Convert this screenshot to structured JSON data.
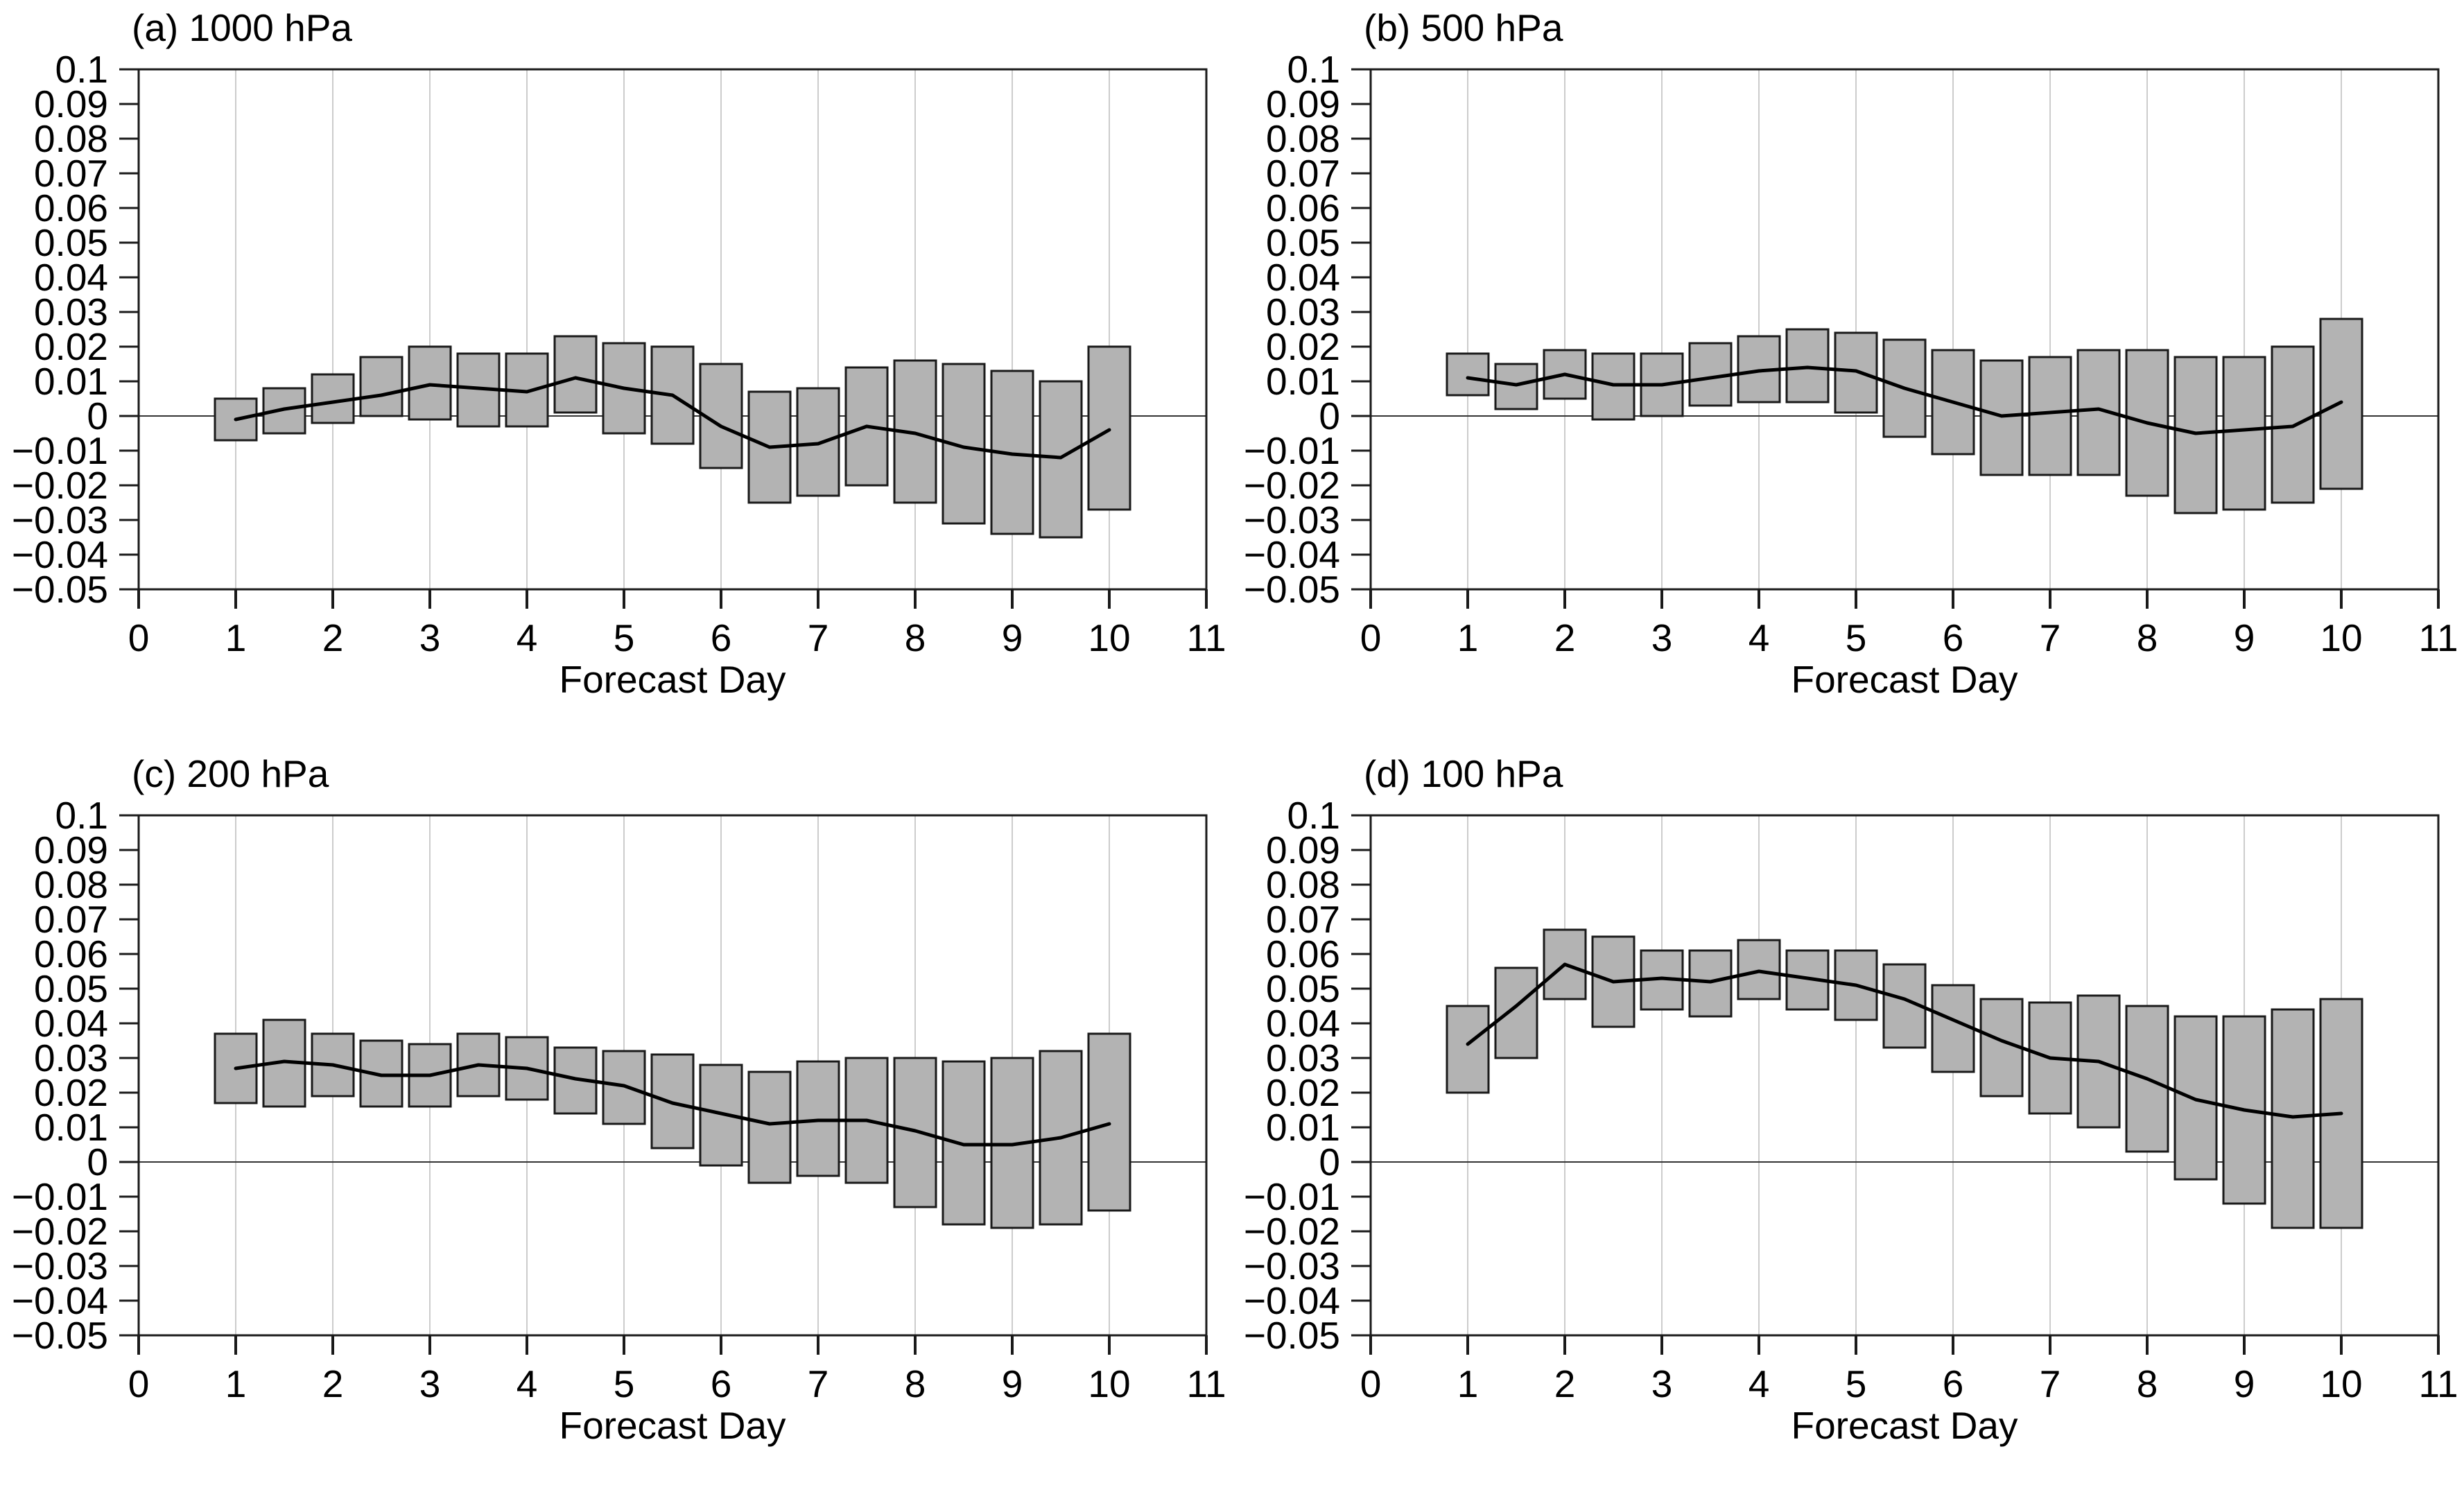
{
  "figure": {
    "background": "#ffffff",
    "xlabel": "Forecast Day",
    "x_tick_labels": [
      "0",
      "1",
      "2",
      "3",
      "4",
      "5",
      "6",
      "7",
      "8",
      "9",
      "10",
      "11"
    ],
    "y_ticks": [
      {
        "v": 0.1,
        "label": "0.1"
      },
      {
        "v": 0.09,
        "label": "0.09"
      },
      {
        "v": 0.08,
        "label": "0.08"
      },
      {
        "v": 0.07,
        "label": "0.07"
      },
      {
        "v": 0.06,
        "label": "0.06"
      },
      {
        "v": 0.05,
        "label": "0.05"
      },
      {
        "v": 0.04,
        "label": "0.04"
      },
      {
        "v": 0.03,
        "label": "0.03"
      },
      {
        "v": 0.02,
        "label": "0.02"
      },
      {
        "v": 0.01,
        "label": "0.01"
      },
      {
        "v": 0.0,
        "label": "0"
      },
      {
        "v": -0.01,
        "label": "−0.01"
      },
      {
        "v": -0.02,
        "label": "−0.02"
      },
      {
        "v": -0.03,
        "label": "−0.03"
      },
      {
        "v": -0.04,
        "label": "−0.04"
      },
      {
        "v": -0.05,
        "label": "−0.05"
      }
    ],
    "colors": {
      "bar_fill": "#b3b3b3",
      "bar_stroke": "#1a1a1a",
      "line": "#000000",
      "grid": "#cccccc",
      "frame": "#1a1a1a",
      "zero_line": "#333333",
      "text": "#000000"
    }
  },
  "chart_data": [
    {
      "id": "a",
      "title": "(a) 1000 hPa",
      "xlabel": "Forecast Day",
      "type": "bar",
      "xlim": [
        0,
        11
      ],
      "ylim": [
        -0.05,
        0.1
      ],
      "x": [
        1,
        1.5,
        2,
        2.5,
        3,
        3.5,
        4,
        4.5,
        5,
        5.5,
        6,
        6.5,
        7,
        7.5,
        8,
        8.5,
        9,
        9.5,
        10
      ],
      "bar_top": [
        0.005,
        0.008,
        0.012,
        0.017,
        0.02,
        0.018,
        0.018,
        0.023,
        0.021,
        0.02,
        0.015,
        0.007,
        0.008,
        0.014,
        0.016,
        0.015,
        0.013,
        0.01,
        0.02
      ],
      "bar_bottom": [
        -0.007,
        -0.005,
        -0.002,
        0.0,
        -0.001,
        -0.003,
        -0.003,
        0.001,
        -0.005,
        -0.008,
        -0.015,
        -0.025,
        -0.023,
        -0.02,
        -0.025,
        -0.031,
        -0.034,
        -0.035,
        -0.027
      ],
      "line_values": [
        -0.001,
        0.002,
        0.004,
        0.006,
        0.009,
        0.008,
        0.007,
        0.011,
        0.008,
        0.006,
        -0.003,
        -0.009,
        -0.008,
        -0.003,
        -0.005,
        -0.009,
        -0.011,
        -0.012,
        -0.004
      ]
    },
    {
      "id": "b",
      "title": "(b) 500 hPa",
      "xlabel": "Forecast Day",
      "type": "bar",
      "xlim": [
        0,
        11
      ],
      "ylim": [
        -0.05,
        0.1
      ],
      "x": [
        1,
        1.5,
        2,
        2.5,
        3,
        3.5,
        4,
        4.5,
        5,
        5.5,
        6,
        6.5,
        7,
        7.5,
        8,
        8.5,
        9,
        9.5,
        10
      ],
      "bar_top": [
        0.018,
        0.015,
        0.019,
        0.018,
        0.018,
        0.021,
        0.023,
        0.025,
        0.024,
        0.022,
        0.019,
        0.016,
        0.017,
        0.019,
        0.019,
        0.017,
        0.017,
        0.02,
        0.028
      ],
      "bar_bottom": [
        0.006,
        0.002,
        0.005,
        -0.001,
        0.0,
        0.003,
        0.004,
        0.004,
        0.001,
        -0.006,
        -0.011,
        -0.017,
        -0.017,
        -0.017,
        -0.023,
        -0.028,
        -0.027,
        -0.025,
        -0.021
      ],
      "line_values": [
        0.011,
        0.009,
        0.012,
        0.009,
        0.009,
        0.011,
        0.013,
        0.014,
        0.013,
        0.008,
        0.004,
        0.0,
        0.001,
        0.002,
        -0.002,
        -0.005,
        -0.004,
        -0.003,
        0.004
      ]
    },
    {
      "id": "c",
      "title": "(c) 200 hPa",
      "xlabel": "Forecast Day",
      "type": "bar",
      "xlim": [
        0,
        11
      ],
      "ylim": [
        -0.05,
        0.1
      ],
      "x": [
        1,
        1.5,
        2,
        2.5,
        3,
        3.5,
        4,
        4.5,
        5,
        5.5,
        6,
        6.5,
        7,
        7.5,
        8,
        8.5,
        9,
        9.5,
        10
      ],
      "bar_top": [
        0.037,
        0.041,
        0.037,
        0.035,
        0.034,
        0.037,
        0.036,
        0.033,
        0.032,
        0.031,
        0.028,
        0.026,
        0.029,
        0.03,
        0.03,
        0.029,
        0.03,
        0.032,
        0.037
      ],
      "bar_bottom": [
        0.017,
        0.016,
        0.019,
        0.016,
        0.016,
        0.019,
        0.018,
        0.014,
        0.011,
        0.004,
        -0.001,
        -0.006,
        -0.004,
        -0.006,
        -0.013,
        -0.018,
        -0.019,
        -0.018,
        -0.014
      ],
      "line_values": [
        0.027,
        0.029,
        0.028,
        0.025,
        0.025,
        0.028,
        0.027,
        0.024,
        0.022,
        0.017,
        0.014,
        0.011,
        0.012,
        0.012,
        0.009,
        0.005,
        0.005,
        0.007,
        0.011
      ]
    },
    {
      "id": "d",
      "title": "(d) 100 hPa",
      "xlabel": "Forecast Day",
      "type": "bar",
      "xlim": [
        0,
        11
      ],
      "ylim": [
        -0.05,
        0.1
      ],
      "x": [
        1,
        1.5,
        2,
        2.5,
        3,
        3.5,
        4,
        4.5,
        5,
        5.5,
        6,
        6.5,
        7,
        7.5,
        8,
        8.5,
        9,
        9.5,
        10
      ],
      "bar_top": [
        0.045,
        0.056,
        0.067,
        0.065,
        0.061,
        0.061,
        0.064,
        0.061,
        0.061,
        0.057,
        0.051,
        0.047,
        0.046,
        0.048,
        0.045,
        0.042,
        0.042,
        0.044,
        0.047
      ],
      "bar_bottom": [
        0.02,
        0.03,
        0.047,
        0.039,
        0.044,
        0.042,
        0.047,
        0.044,
        0.041,
        0.033,
        0.026,
        0.019,
        0.014,
        0.01,
        0.003,
        -0.005,
        -0.012,
        -0.019,
        -0.019
      ],
      "line_values": [
        0.034,
        0.045,
        0.057,
        0.052,
        0.053,
        0.052,
        0.055,
        0.053,
        0.051,
        0.047,
        0.041,
        0.035,
        0.03,
        0.029,
        0.024,
        0.018,
        0.015,
        0.013,
        0.014
      ]
    }
  ]
}
